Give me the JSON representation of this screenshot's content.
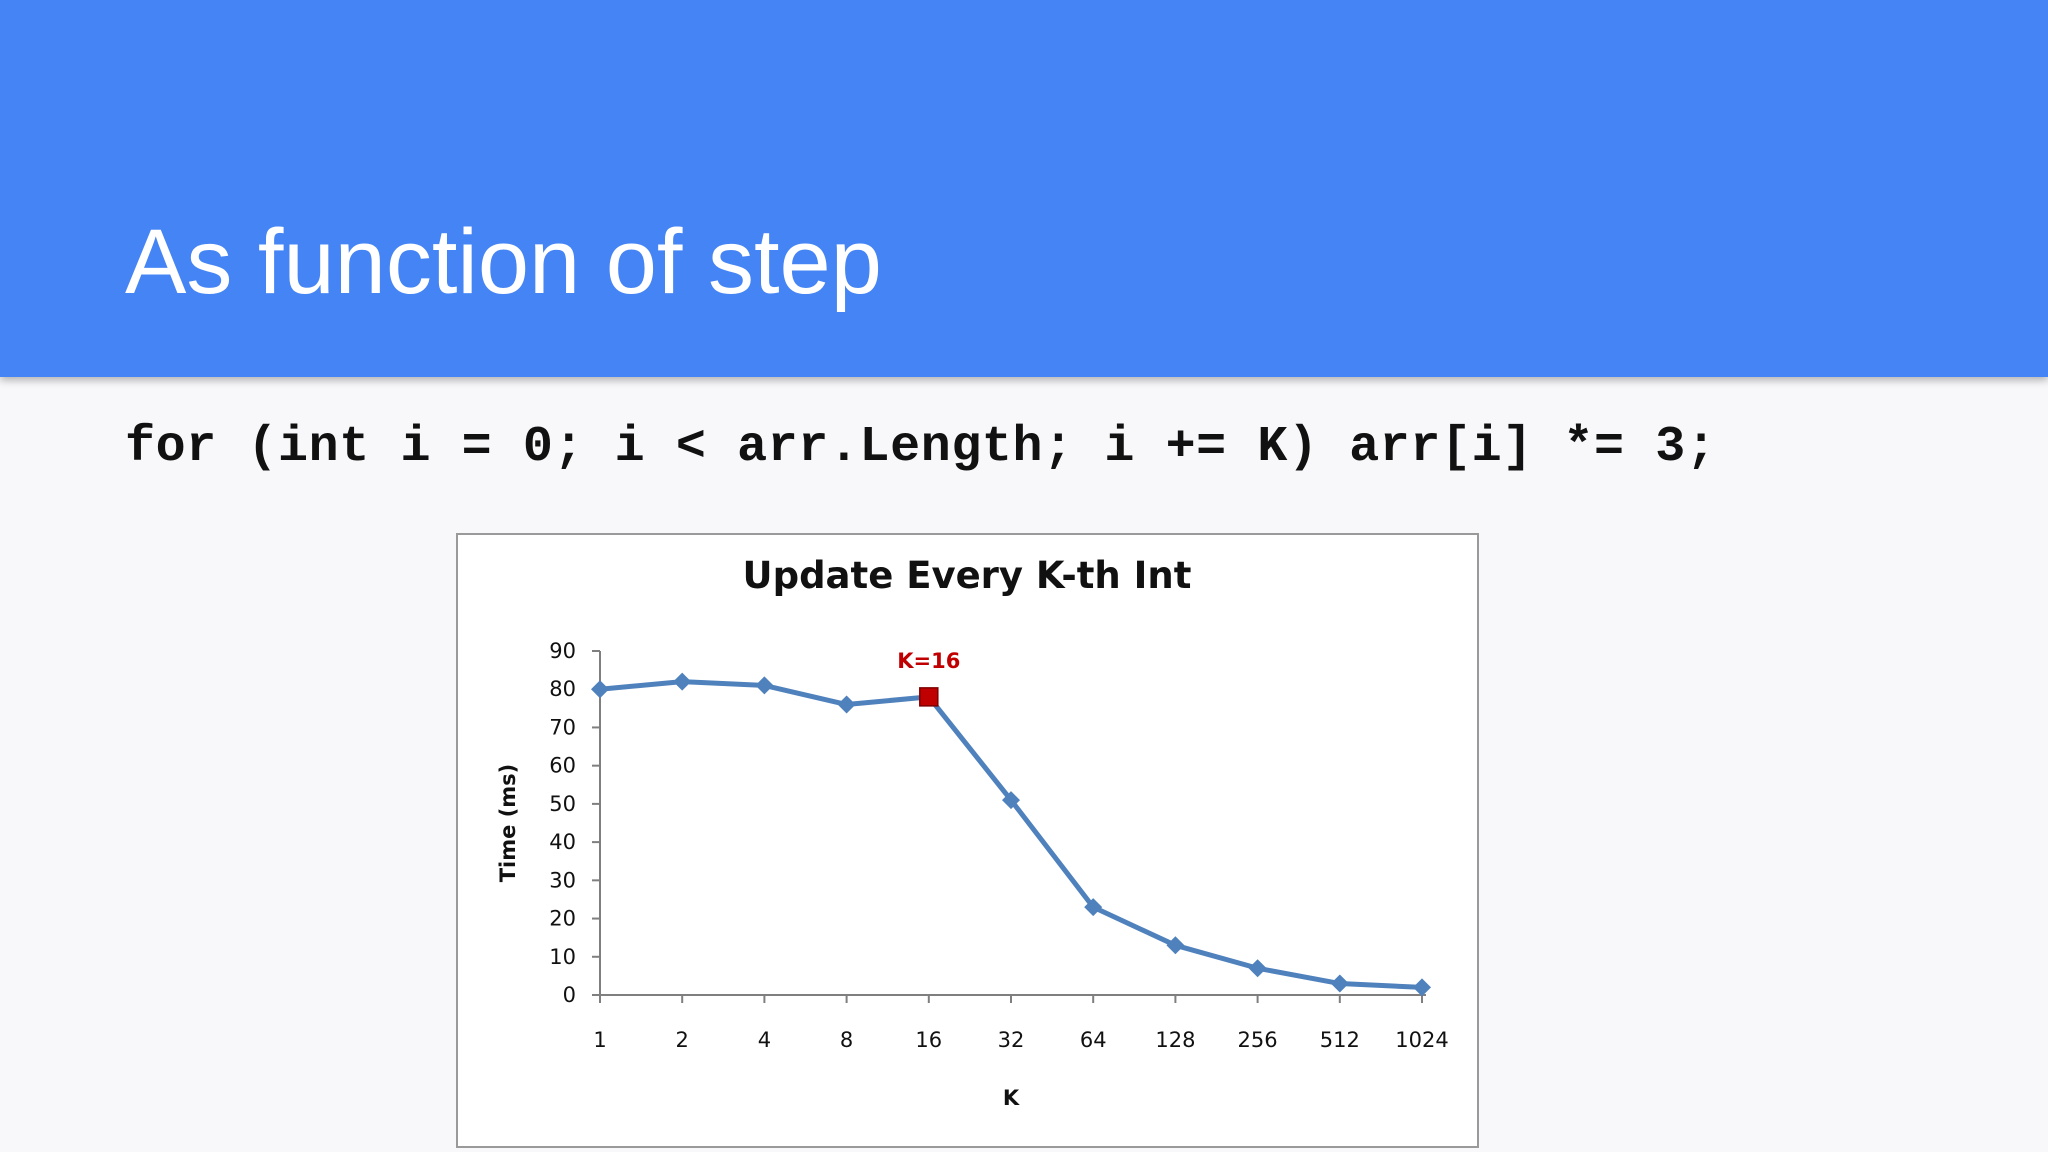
{
  "slide": {
    "title": "As function of step",
    "code": "for (int i = 0; i < arr.Length; i += K) arr[i] *= 3;"
  },
  "colors": {
    "header_bg": "#4584f4",
    "slide_bg": "#f8f8fa",
    "series_line": "#4f81bd",
    "highlight_point": "#c00000",
    "annotation_text": "#c00000"
  },
  "chart_data": {
    "type": "line",
    "title": "Update Every K-th Int",
    "xlabel": "K",
    "ylabel": "Time (ms)",
    "x_scale": "log2",
    "categories": [
      "1",
      "2",
      "4",
      "8",
      "16",
      "32",
      "64",
      "128",
      "256",
      "512",
      "1024"
    ],
    "x": [
      1,
      2,
      4,
      8,
      16,
      32,
      64,
      128,
      256,
      512,
      1024
    ],
    "series": [
      {
        "name": "",
        "values": [
          80,
          82,
          81,
          76,
          78,
          51,
          23,
          13,
          7,
          3,
          2
        ]
      }
    ],
    "ylim": [
      0,
      90
    ],
    "yticks": [
      0,
      10,
      20,
      30,
      40,
      50,
      60,
      70,
      80,
      90
    ],
    "grid": false,
    "legend": "none",
    "annotations": [
      {
        "text": "K=16",
        "x": 16,
        "y": 78
      }
    ],
    "highlight_index": 4
  }
}
